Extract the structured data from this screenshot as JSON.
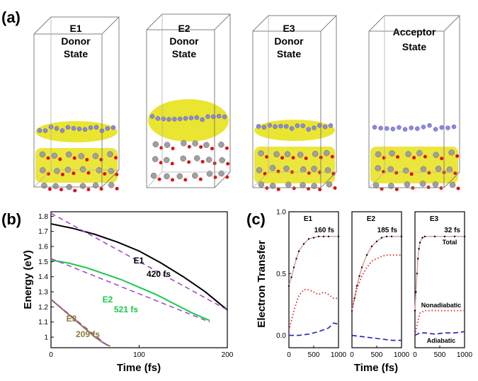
{
  "panel_a": {
    "label": "(a)",
    "states": [
      {
        "name": "E1",
        "line2": "Donor",
        "line3": "State"
      },
      {
        "name": "E2",
        "line2": "Donor",
        "line3": "State"
      },
      {
        "name": "E3",
        "line2": "Donor",
        "line3": "State"
      },
      {
        "name": "Acceptor",
        "line2": "State",
        "line3": ""
      }
    ]
  },
  "panel_b": {
    "label": "(b)"
  },
  "panel_c": {
    "label": "(c)"
  },
  "chart_data": [
    {
      "type": "line",
      "ylabel": "Energy (eV)",
      "xlabel": "Time (fs)",
      "xlim": [
        0,
        200
      ],
      "ylim": [
        0.93,
        1.83
      ],
      "xticks": [
        "0",
        "100",
        "200"
      ],
      "yticks": [
        "1",
        "1.1",
        "1.2",
        "1.3",
        "1.4",
        "1.5",
        "1.6",
        "1.7",
        "1.8"
      ],
      "series": [
        {
          "name": "E1",
          "time_label": "420 fs",
          "color": "#000000",
          "x": [
            0,
            25,
            50,
            75,
            100,
            125,
            150,
            175,
            200
          ],
          "y": [
            1.75,
            1.72,
            1.68,
            1.63,
            1.57,
            1.49,
            1.4,
            1.3,
            1.18
          ],
          "fit_x": [
            0,
            200
          ],
          "fit_y": [
            1.82,
            1.18
          ],
          "fit_color": "#a64ac9"
        },
        {
          "name": "E2",
          "time_label": "521 fs",
          "color": "#19c94a",
          "x": [
            0,
            20,
            40,
            60,
            80,
            100,
            120,
            140,
            160,
            180
          ],
          "y": [
            1.51,
            1.49,
            1.46,
            1.42,
            1.38,
            1.33,
            1.28,
            1.22,
            1.16,
            1.11
          ],
          "fit_x": [
            0,
            180
          ],
          "fit_y": [
            1.52,
            1.1
          ],
          "fit_color": "#a64ac9"
        },
        {
          "name": "E3",
          "time_label": "209 fs",
          "color": "#8a7a3a",
          "x": [
            0,
            10,
            20,
            30,
            40,
            50,
            60,
            67
          ],
          "y": [
            1.25,
            1.2,
            1.15,
            1.1,
            1.05,
            1.0,
            0.96,
            0.94
          ],
          "fit_x": [
            0,
            67
          ],
          "fit_y": [
            1.25,
            0.93
          ],
          "fit_color": "#a64ac9"
        }
      ]
    },
    {
      "type": "line",
      "ylabel": "Electron Transfer",
      "xlabel": "Time (fs)",
      "xlim": [
        0,
        1000
      ],
      "ylim": [
        -0.1,
        1.0
      ],
      "xticks": [
        "0",
        "500",
        "1000"
      ],
      "yticks": [
        "0.0",
        "0.5",
        "1.0"
      ],
      "subplots": [
        {
          "name": "E1",
          "time_label": "160 fs",
          "total_x": [
            0,
            50,
            100,
            150,
            200,
            300,
            400,
            500,
            600,
            700,
            800,
            1000
          ],
          "total_y": [
            0.4,
            0.47,
            0.55,
            0.62,
            0.68,
            0.74,
            0.78,
            0.79,
            0.8,
            0.8,
            0.8,
            0.8
          ],
          "nonadiabatic_x": [
            0,
            100,
            200,
            300,
            400,
            500,
            600,
            700,
            800,
            900,
            1000
          ],
          "nonadiabatic_y": [
            0.04,
            0.2,
            0.32,
            0.37,
            0.37,
            0.35,
            0.33,
            0.35,
            0.33,
            0.3,
            0.3
          ],
          "adiabatic_x": [
            0,
            200,
            400,
            600,
            800,
            900,
            1000
          ],
          "adiabatic_y": [
            0.0,
            0.0,
            0.01,
            0.03,
            0.06,
            0.1,
            0.09
          ]
        },
        {
          "name": "E2",
          "time_label": "185 fs",
          "total_x": [
            0,
            50,
            100,
            150,
            200,
            300,
            400,
            500,
            600,
            700,
            800,
            1000
          ],
          "total_y": [
            0.2,
            0.3,
            0.4,
            0.48,
            0.55,
            0.65,
            0.72,
            0.76,
            0.79,
            0.8,
            0.8,
            0.8
          ],
          "nonadiabatic_x": [
            0,
            100,
            200,
            300,
            400,
            500,
            600,
            700,
            800,
            1000
          ],
          "nonadiabatic_y": [
            0.2,
            0.38,
            0.48,
            0.55,
            0.6,
            0.62,
            0.64,
            0.65,
            0.65,
            0.65
          ],
          "adiabatic_x": [
            0,
            200,
            400,
            600,
            800,
            1000
          ],
          "adiabatic_y": [
            0.0,
            -0.01,
            -0.02,
            -0.03,
            -0.04,
            -0.04
          ]
        },
        {
          "name": "E3",
          "time_label": "32 fs",
          "total_x": [
            0,
            20,
            40,
            60,
            80,
            100,
            150,
            200,
            400,
            600,
            800,
            1000
          ],
          "total_y": [
            0.2,
            0.35,
            0.5,
            0.62,
            0.7,
            0.75,
            0.79,
            0.8,
            0.8,
            0.8,
            0.8,
            0.8
          ],
          "nonadiabatic_x": [
            0,
            50,
            100,
            200,
            400,
            600,
            800,
            1000
          ],
          "nonadiabatic_y": [
            0.0,
            0.1,
            0.18,
            0.2,
            0.2,
            0.2,
            0.2,
            0.2
          ],
          "adiabatic_x": [
            0,
            50,
            100,
            200,
            400,
            600,
            800,
            1000
          ],
          "adiabatic_y": [
            0.0,
            0.01,
            0.02,
            0.02,
            0.01,
            0.02,
            0.02,
            0.03
          ]
        }
      ],
      "legend_labels": {
        "total": "Total",
        "nonadiabatic": "Nonadiabatic",
        "adiabatic": "Adiabatic"
      },
      "colors": {
        "total": "#000000",
        "total_fit": "#d9a0a0",
        "nonadiabatic": "#e02020",
        "adiabatic": "#2020c0"
      }
    }
  ]
}
